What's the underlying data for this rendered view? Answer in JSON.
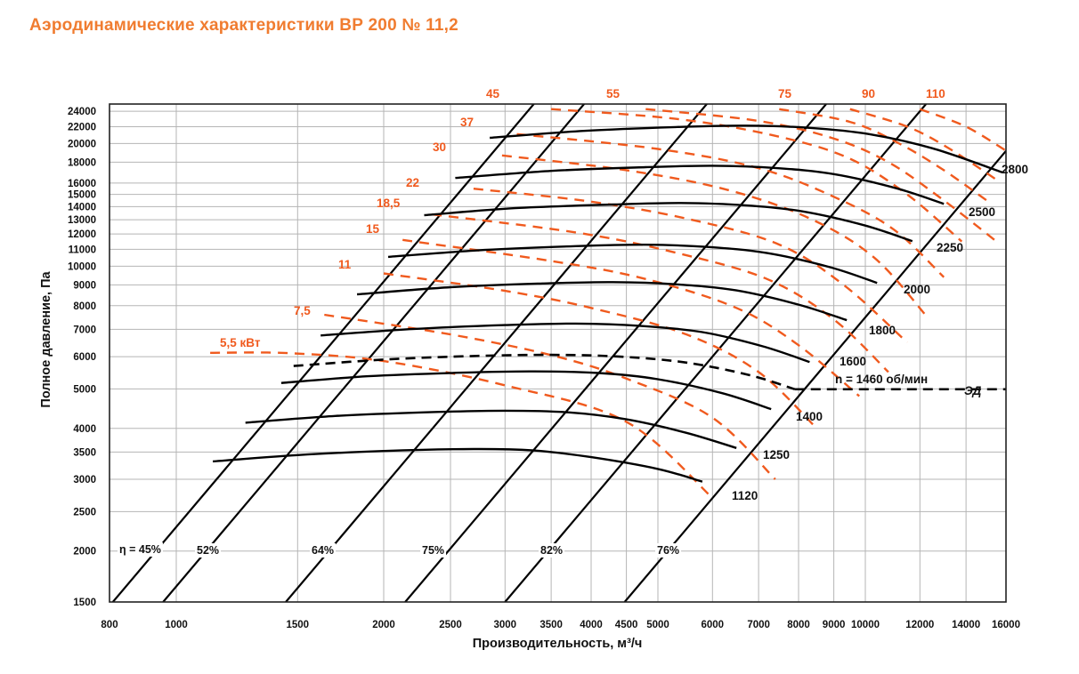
{
  "title": "Аэродинамические характеристики ВР 200 № 11,2",
  "colors": {
    "title": "#f07c30",
    "power": "#f05a1e",
    "curves": "#000000",
    "grid": "#b5b5b5"
  },
  "chart_data": {
    "type": "line",
    "xlabel": "Производительность, м³/ч",
    "ylabel": "Полное давление, Па",
    "xscale": "log",
    "yscale": "log",
    "xlim": [
      800,
      16000
    ],
    "ylim": [
      1500,
      25000
    ],
    "grid": true,
    "x_ticks": [
      800,
      1000,
      1500,
      2000,
      2500,
      3000,
      3500,
      4000,
      4500,
      5000,
      6000,
      7000,
      8000,
      9000,
      10000,
      12000,
      14000,
      16000
    ],
    "x_tick_labels": [
      "800",
      "1000",
      "1500",
      "2000",
      "2500",
      "3000",
      "3500",
      "4000",
      "4500",
      "5000",
      "6000",
      "7000",
      "8000",
      "9000",
      "10000",
      "12000",
      "14000",
      "16000"
    ],
    "y_ticks": [
      1500,
      2000,
      2500,
      3000,
      3500,
      4000,
      5000,
      6000,
      7000,
      8000,
      9000,
      10000,
      11000,
      12000,
      13000,
      14000,
      15000,
      16000,
      18000,
      20000,
      22000,
      24000
    ],
    "y_tick_labels": [
      "1500",
      "2000",
      "2500",
      "3000",
      "3500",
      "4000",
      "5000",
      "6000",
      "7000",
      "8000",
      "9000",
      "10000",
      "11000",
      "12000",
      "13000",
      "14000",
      "15000",
      "16000",
      "18000",
      "20000",
      "22000",
      "24000"
    ],
    "speed_curves": [
      {
        "label": "1120",
        "points": [
          [
            1130,
            3320
          ],
          [
            1500,
            3440
          ],
          [
            2000,
            3520
          ],
          [
            2700,
            3560
          ],
          [
            3300,
            3530
          ],
          [
            4000,
            3400
          ],
          [
            5000,
            3180
          ],
          [
            5800,
            2960
          ]
        ]
      },
      {
        "label": "1250",
        "points": [
          [
            1260,
            4130
          ],
          [
            1700,
            4290
          ],
          [
            2300,
            4380
          ],
          [
            3000,
            4420
          ],
          [
            3700,
            4380
          ],
          [
            4500,
            4210
          ],
          [
            5500,
            3900
          ],
          [
            6500,
            3580
          ]
        ]
      },
      {
        "label": "1400",
        "points": [
          [
            1420,
            5170
          ],
          [
            1900,
            5370
          ],
          [
            2600,
            5480
          ],
          [
            3300,
            5520
          ],
          [
            4100,
            5470
          ],
          [
            5000,
            5280
          ],
          [
            6200,
            4880
          ],
          [
            7300,
            4460
          ]
        ]
      },
      {
        "label": "1600",
        "points": [
          [
            1620,
            6760
          ],
          [
            2200,
            7010
          ],
          [
            3000,
            7170
          ],
          [
            3800,
            7230
          ],
          [
            4700,
            7140
          ],
          [
            5800,
            6890
          ],
          [
            7100,
            6360
          ],
          [
            8300,
            5820
          ]
        ]
      },
      {
        "label": "1800",
        "points": [
          [
            1830,
            8530
          ],
          [
            2500,
            8880
          ],
          [
            3400,
            9070
          ],
          [
            4300,
            9140
          ],
          [
            5300,
            9030
          ],
          [
            6500,
            8720
          ],
          [
            8000,
            8050
          ],
          [
            9400,
            7370
          ]
        ]
      },
      {
        "label": "2000",
        "points": [
          [
            2030,
            10540
          ],
          [
            2800,
            10960
          ],
          [
            3800,
            11200
          ],
          [
            4800,
            11290
          ],
          [
            5900,
            11150
          ],
          [
            7200,
            10770
          ],
          [
            8900,
            9940
          ],
          [
            10400,
            9100
          ]
        ]
      },
      {
        "label": "2250",
        "points": [
          [
            2290,
            13340
          ],
          [
            3100,
            13880
          ],
          [
            4300,
            14170
          ],
          [
            5400,
            14290
          ],
          [
            6700,
            14110
          ],
          [
            8100,
            13630
          ],
          [
            10000,
            12580
          ],
          [
            11700,
            11520
          ]
        ]
      },
      {
        "label": "2500",
        "points": [
          [
            2540,
            16470
          ],
          [
            3500,
            17130
          ],
          [
            4800,
            17500
          ],
          [
            6000,
            17640
          ],
          [
            7400,
            17420
          ],
          [
            9000,
            16830
          ],
          [
            11100,
            15530
          ],
          [
            13000,
            14220
          ]
        ]
      },
      {
        "label": "2800",
        "points": [
          [
            2850,
            20660
          ],
          [
            3900,
            21480
          ],
          [
            5300,
            21950
          ],
          [
            6700,
            22130
          ],
          [
            8300,
            21850
          ],
          [
            10100,
            21110
          ],
          [
            12500,
            19480
          ],
          [
            15800,
            17000
          ]
        ]
      }
    ],
    "motor_curve": {
      "label": "n = 1460 об/мин",
      "points": [
        [
          1480,
          5690
        ],
        [
          2000,
          5900
        ],
        [
          2700,
          6020
        ],
        [
          3500,
          6060
        ],
        [
          4400,
          6000
        ],
        [
          5500,
          5800
        ],
        [
          6800,
          5400
        ],
        [
          7900,
          4990
        ],
        [
          16000,
          4990
        ]
      ]
    },
    "motor_label": "ЭД",
    "efficiency_lines": [
      {
        "label": "η = 45%",
        "x_at_1500": 809
      },
      {
        "label": "52%",
        "x_at_1500": 957
      },
      {
        "label": "64%",
        "x_at_1500": 1442
      },
      {
        "label": "75%",
        "x_at_1500": 2149
      },
      {
        "label": "82%",
        "x_at_1500": 3000
      },
      {
        "label": "76%",
        "x_at_1500": 4474
      }
    ],
    "power_lines": [
      {
        "label": "5,5 кВт",
        "points": [
          [
            1120,
            6130
          ],
          [
            1450,
            6120
          ],
          [
            2000,
            5850
          ],
          [
            3000,
            5100
          ],
          [
            4500,
            4150
          ],
          [
            6000,
            2700
          ]
        ]
      },
      {
        "label": "7,5",
        "points": [
          [
            1640,
            7600
          ],
          [
            2500,
            6800
          ],
          [
            3500,
            6050
          ],
          [
            4500,
            5300
          ],
          [
            6000,
            4250
          ],
          [
            7400,
            3000
          ]
        ]
      },
      {
        "label": "11",
        "points": [
          [
            2000,
            9600
          ],
          [
            3000,
            8700
          ],
          [
            4000,
            7900
          ],
          [
            5500,
            6800
          ],
          [
            7000,
            5500
          ],
          [
            8500,
            4000
          ]
        ]
      },
      {
        "label": "15",
        "points": [
          [
            2130,
            11600
          ],
          [
            3500,
            10300
          ],
          [
            4800,
            9300
          ],
          [
            6500,
            7900
          ],
          [
            8000,
            6400
          ],
          [
            9800,
            4800
          ]
        ]
      },
      {
        "label": "18,5",
        "points": [
          [
            2350,
            13400
          ],
          [
            3800,
            12100
          ],
          [
            5300,
            10800
          ],
          [
            7200,
            9300
          ],
          [
            9000,
            7400
          ],
          [
            10800,
            5500
          ]
        ]
      },
      {
        "label": "22",
        "points": [
          [
            2700,
            15500
          ],
          [
            4000,
            14400
          ],
          [
            5600,
            13000
          ],
          [
            7500,
            11300
          ],
          [
            9300,
            9000
          ],
          [
            11500,
            6500
          ]
        ]
      },
      {
        "label": "30",
        "points": [
          [
            2970,
            18700
          ],
          [
            4500,
            17200
          ],
          [
            6300,
            15400
          ],
          [
            8300,
            13100
          ],
          [
            10300,
            10500
          ],
          [
            12300,
            7500
          ]
        ]
      },
      {
        "label": "37",
        "points": [
          [
            3120,
            21100
          ],
          [
            5000,
            19400
          ],
          [
            7000,
            17400
          ],
          [
            9000,
            14800
          ],
          [
            11000,
            12300
          ],
          [
            13000,
            9400
          ]
        ]
      },
      {
        "label": "45",
        "points": [
          [
            3500,
            24300
          ],
          [
            5300,
            23000
          ],
          [
            7300,
            21000
          ],
          [
            9400,
            18500
          ],
          [
            11500,
            15000
          ],
          [
            13800,
            11500
          ]
        ]
      },
      {
        "label": "55",
        "points": [
          [
            4800,
            24300
          ],
          [
            6900,
            22800
          ],
          [
            8900,
            20700
          ],
          [
            10800,
            18000
          ],
          [
            13000,
            14500
          ],
          [
            15500,
            11500
          ]
        ]
      },
      {
        "label": "75",
        "points": [
          [
            7500,
            24300
          ],
          [
            9500,
            22600
          ],
          [
            11200,
            20000
          ],
          [
            13000,
            17200
          ],
          [
            15000,
            14500
          ]
        ]
      },
      {
        "label": "90",
        "points": [
          [
            9500,
            24300
          ],
          [
            11500,
            22000
          ],
          [
            13200,
            19500
          ],
          [
            15500,
            16300
          ]
        ]
      },
      {
        "label": "110",
        "points": [
          [
            12000,
            24300
          ],
          [
            14000,
            22000
          ],
          [
            16000,
            19200
          ]
        ]
      }
    ]
  }
}
